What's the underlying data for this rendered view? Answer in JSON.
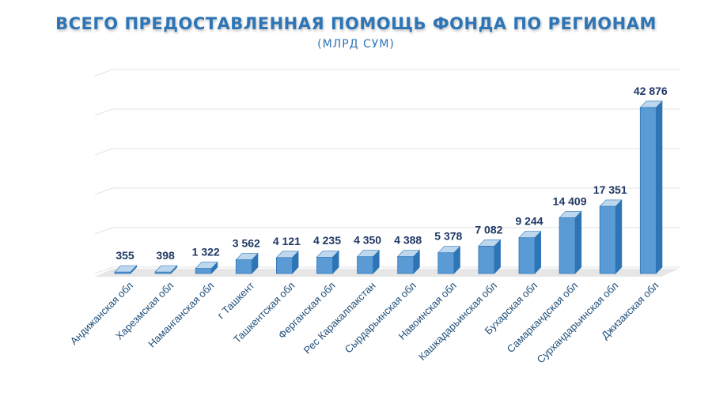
{
  "chart_data": {
    "type": "bar",
    "title": "ВСЕГО ПРЕДОСТАВЛЕННАЯ ПОМОЩЬ ФОНДА ПО РЕГИОНАМ",
    "subtitle": "(МЛРД СУМ)",
    "categories": [
      "Андижанская обл",
      "Харезмская обл",
      "Наманганская обл",
      "г Ташкент",
      "Ташкентская обл",
      "Ферганская обл",
      "Рес Каракалпакстан",
      "Сырдарьинская обл",
      "Навоинская обл",
      "Кашкадарьинская обл",
      "Бухарская обл",
      "Самаркандская обл",
      "Сурхандарьинская обл",
      "Джизакская обл"
    ],
    "values": [
      355,
      398,
      1322,
      3562,
      4121,
      4235,
      4350,
      4388,
      5378,
      7082,
      9244,
      14409,
      17351,
      42876
    ],
    "value_labels": [
      "355",
      "398",
      "1 322",
      "3 562",
      "4 121",
      "4 235",
      "4 350",
      "4 388",
      "5 378",
      "7 082",
      "9 244",
      "14 409",
      "17 351",
      "42 876"
    ],
    "ylim": [
      0,
      45000
    ],
    "grid": true,
    "colors": {
      "bar_front": "#5b9bd5",
      "bar_side": "#2e75b6",
      "bar_top": "#bdd7ee",
      "floor": "#e7e6e6",
      "title": "#2e75b6"
    }
  }
}
